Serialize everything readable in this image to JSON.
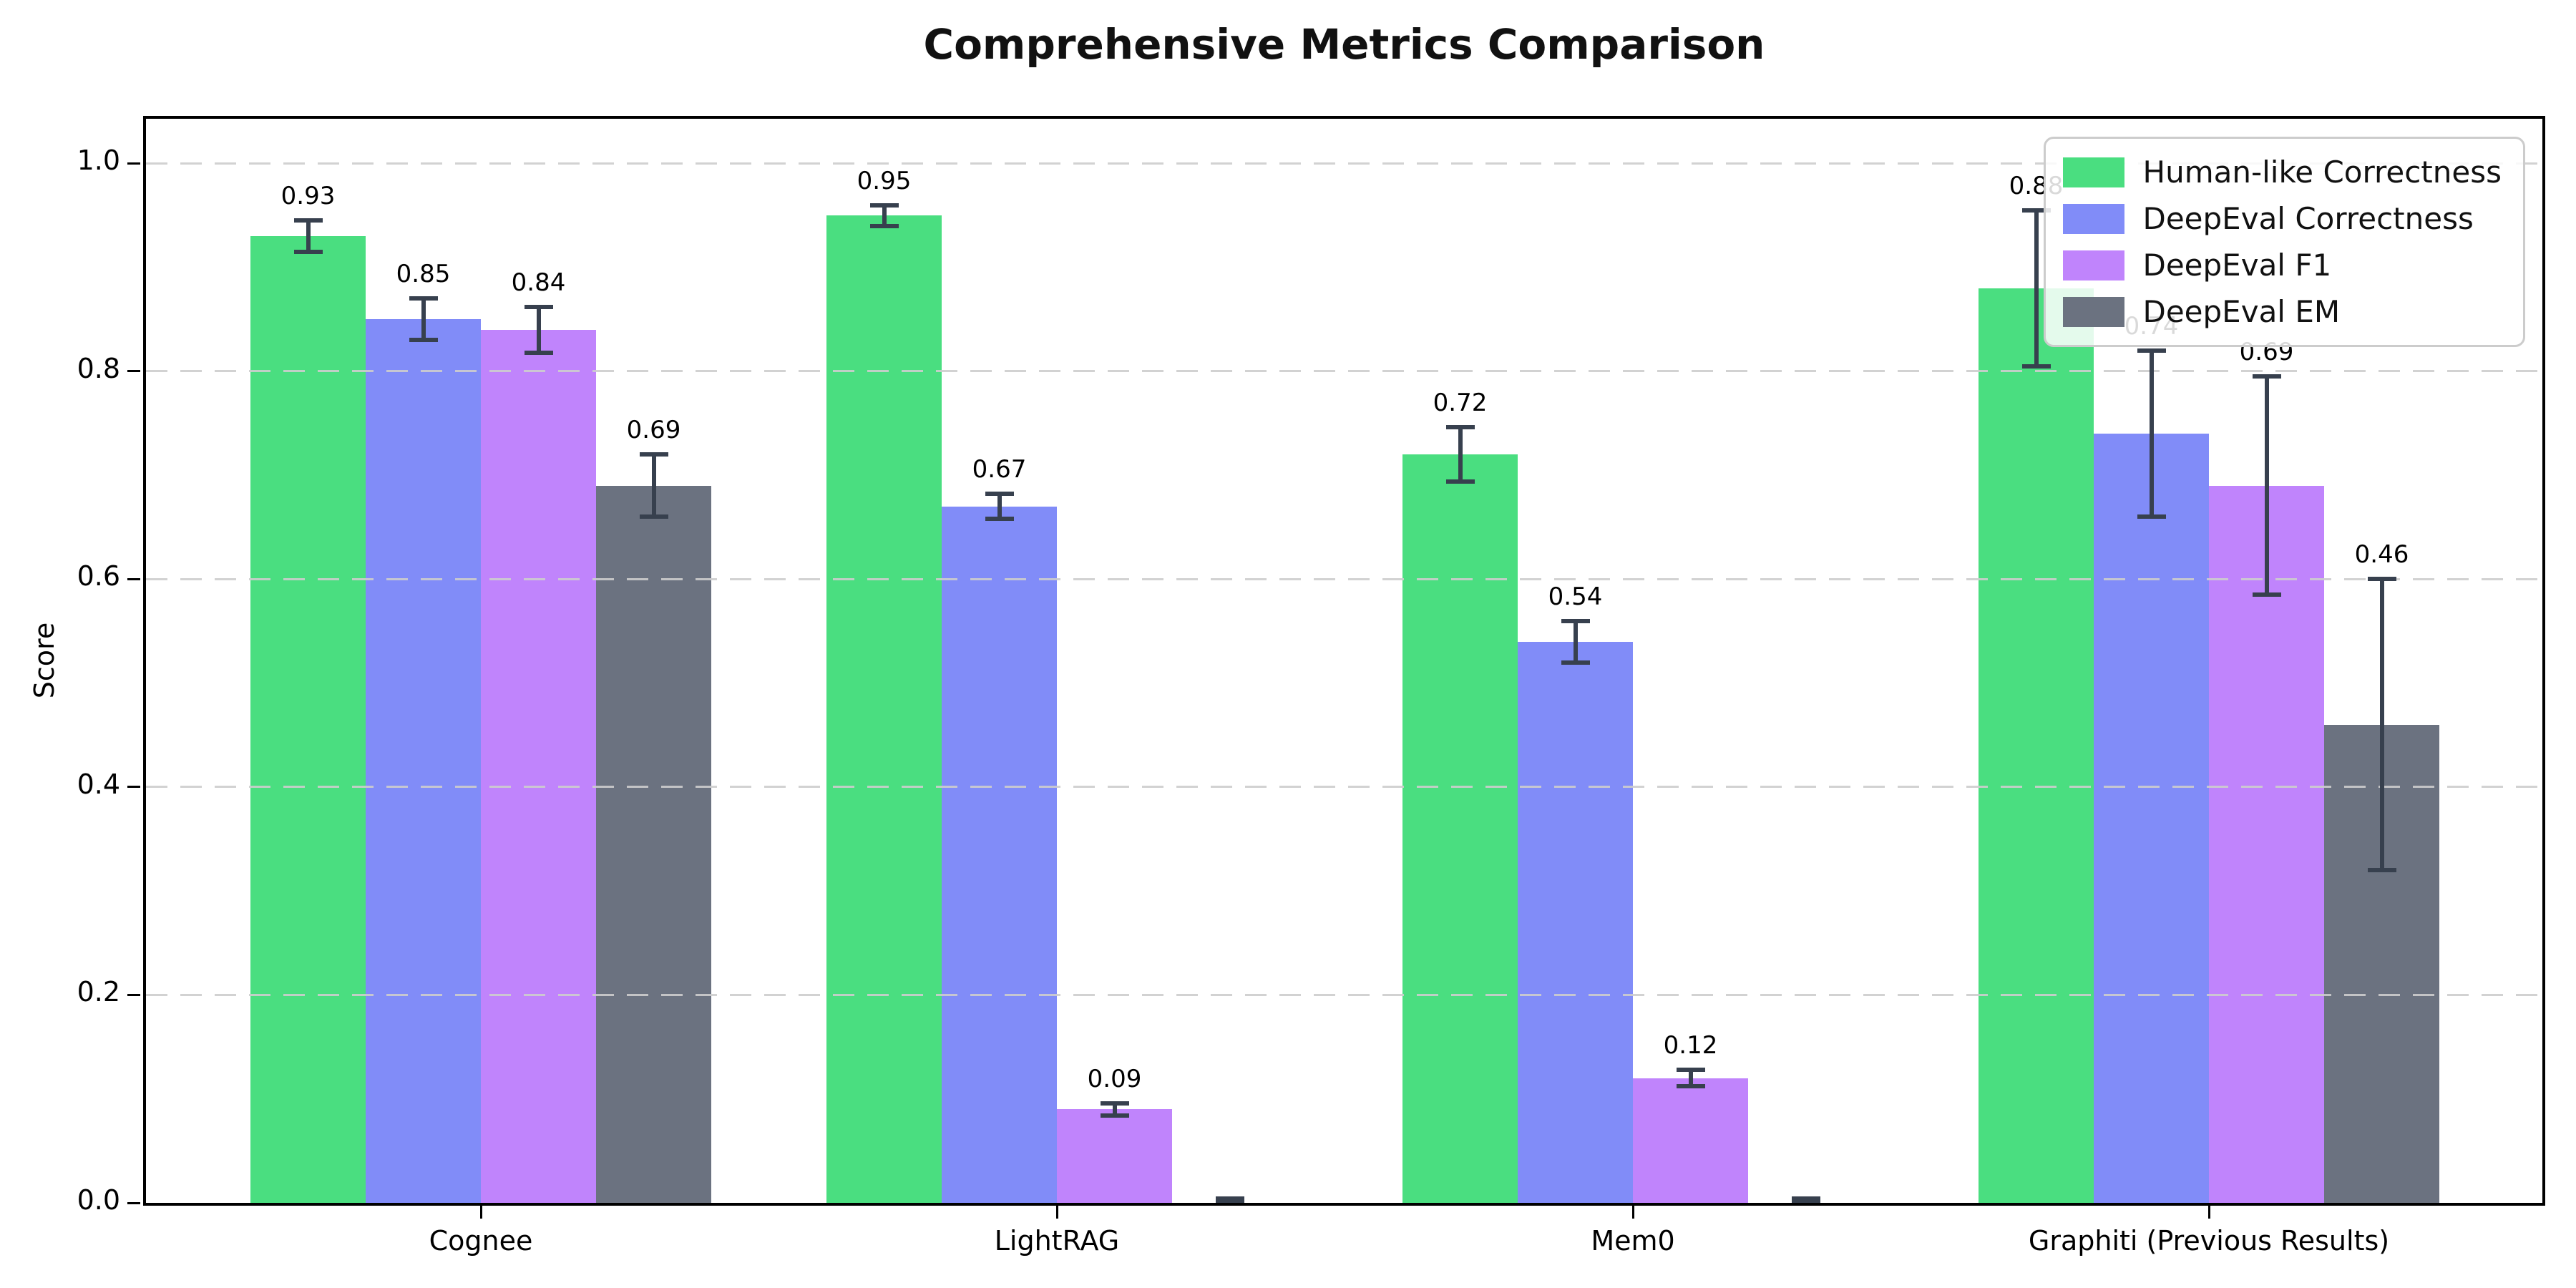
{
  "chart_data": {
    "type": "bar",
    "title": "Comprehensive Metrics Comparison",
    "ylabel": "Score",
    "xlabel": "",
    "categories": [
      "Cognee",
      "LightRAG",
      "Mem0",
      "Graphiti (Previous Results)"
    ],
    "series": [
      {
        "name": "Human-like Correctness",
        "color": "#4ade80",
        "values": [
          0.93,
          0.95,
          0.72,
          0.88
        ],
        "errors": [
          0.015,
          0.01,
          0.026,
          0.075
        ]
      },
      {
        "name": "DeepEval Correctness",
        "color": "#818cf8",
        "values": [
          0.85,
          0.67,
          0.54,
          0.74
        ],
        "errors": [
          0.02,
          0.012,
          0.02,
          0.08
        ]
      },
      {
        "name": "DeepEval F1",
        "color": "#c084fc",
        "values": [
          0.84,
          0.09,
          0.12,
          0.69
        ],
        "errors": [
          0.022,
          0.006,
          0.008,
          0.105
        ]
      },
      {
        "name": "DeepEval EM",
        "color": "#6b7280",
        "values": [
          0.69,
          0.0,
          0.0,
          0.46
        ],
        "errors": [
          0.03,
          0.004,
          0.004,
          0.14
        ]
      }
    ],
    "bar_value_labels": [
      [
        "0.93",
        "0.85",
        "0.84",
        "0.69"
      ],
      [
        "0.95",
        "0.67",
        "0.09",
        ""
      ],
      [
        "0.72",
        "0.54",
        "0.12",
        ""
      ],
      [
        "0.88",
        "0.74",
        "0.69",
        "0.46"
      ]
    ],
    "yticks": [
      "0.0",
      "0.2",
      "0.4",
      "0.6",
      "0.8",
      "1.0"
    ],
    "ytick_values": [
      0.0,
      0.2,
      0.4,
      0.6,
      0.8,
      1.0
    ],
    "ylim": [
      0,
      1.043
    ],
    "grid": "dashed horizontal",
    "legend_position": "upper right",
    "error_bar_color": "#37404e",
    "grid_color": "#cdcdcd",
    "axis_color": "#000000",
    "background_color": "#ffffff"
  }
}
